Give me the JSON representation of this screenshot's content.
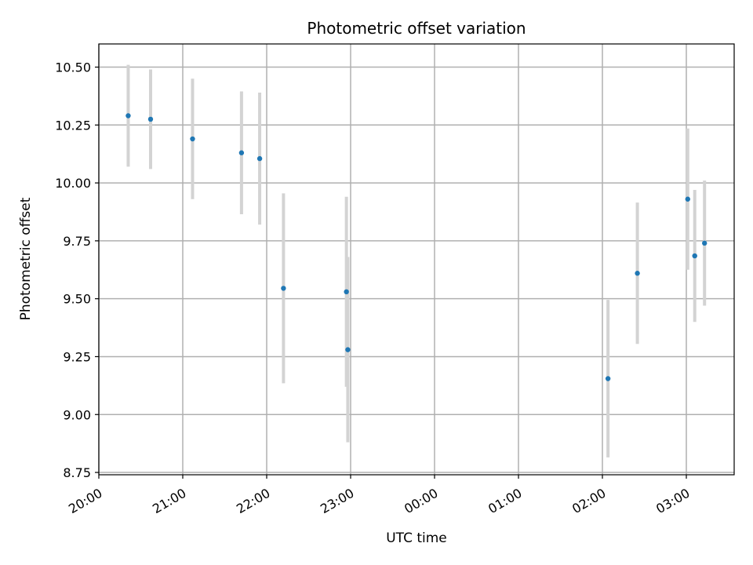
{
  "chart_data": {
    "type": "scatter",
    "title": "Photometric offset variation",
    "xlabel": "UTC time",
    "ylabel": "Photometric offset",
    "x_tick_labels": [
      "20:00",
      "21:00",
      "22:00",
      "23:00",
      "00:00",
      "01:00",
      "02:00",
      "03:00"
    ],
    "x_tick_hours": [
      20,
      21,
      22,
      23,
      24,
      25,
      26,
      27
    ],
    "y_tick_labels": [
      "8.75",
      "9.00",
      "9.25",
      "9.50",
      "9.75",
      "10.00",
      "10.25",
      "10.50"
    ],
    "y_ticks": [
      8.75,
      9.0,
      9.25,
      9.5,
      9.75,
      10.0,
      10.25,
      10.5
    ],
    "xlim_hours": [
      20.0,
      27.57
    ],
    "ylim": [
      8.74,
      10.6
    ],
    "grid": true,
    "marker_color": "#1f77b4",
    "errorbar_color": "#d3d3d3",
    "points": [
      {
        "time": "20:21",
        "y": 10.29,
        "err": 0.22
      },
      {
        "time": "20:37",
        "y": 10.275,
        "err": 0.215
      },
      {
        "time": "21:07",
        "y": 10.19,
        "err": 0.26
      },
      {
        "time": "21:42",
        "y": 10.13,
        "err": 0.265
      },
      {
        "time": "21:55",
        "y": 10.105,
        "err": 0.285
      },
      {
        "time": "22:12",
        "y": 9.545,
        "err": 0.41
      },
      {
        "time": "22:57",
        "y": 9.53,
        "err": 0.41
      },
      {
        "time": "22:58",
        "y": 9.28,
        "err": 0.4
      },
      {
        "time": "02:04",
        "y": 9.155,
        "err": 0.34
      },
      {
        "time": "02:25",
        "y": 9.61,
        "err": 0.305
      },
      {
        "time": "03:01",
        "y": 9.93,
        "err": 0.305
      },
      {
        "time": "03:06",
        "y": 9.685,
        "err": 0.285
      },
      {
        "time": "03:13",
        "y": 9.74,
        "err": 0.27
      }
    ]
  }
}
